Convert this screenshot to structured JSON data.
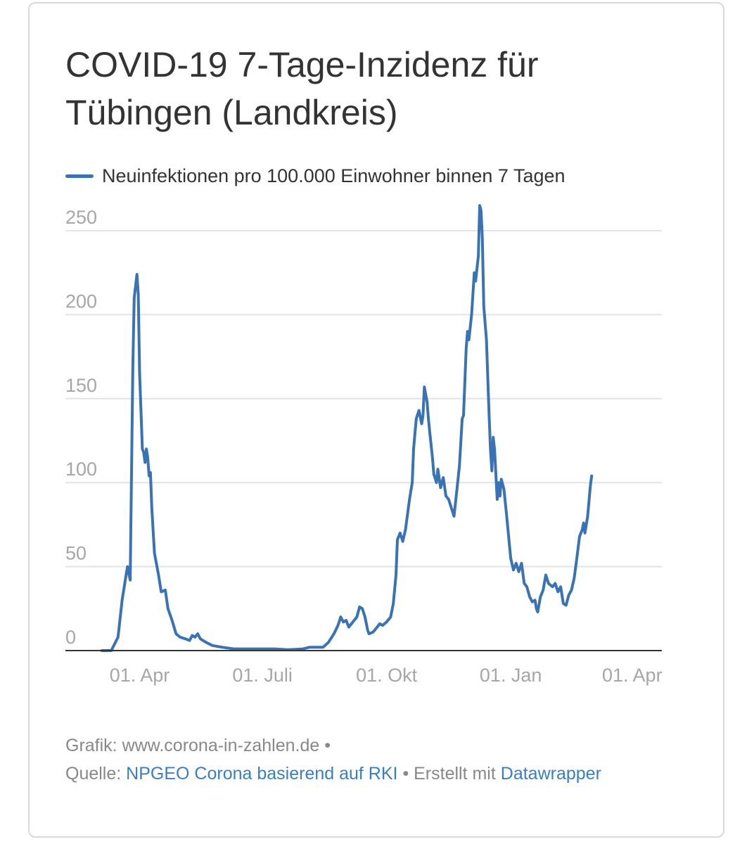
{
  "title": "COVID-19 7-Tage-Inzidenz für Tübingen (Landkreis)",
  "legend": {
    "label": "Neuinfektionen pro 100.000 Einwohner binnen 7 Tagen",
    "color": "#3a73b4"
  },
  "footer": {
    "line1": "Grafik: www.corona-in-zahlen.de •",
    "source_prefix": "Quelle:",
    "source_link": "NPGEO Corona basierend auf RKI",
    "made_with": "• Erstellt mit",
    "tool_link": "Datawrapper"
  },
  "colors": {
    "line": "#3a73b4",
    "grid": "#e3e3e3",
    "axis": "#333333",
    "tick_text": "#a6a6a6",
    "link": "#3a7ec2"
  },
  "chart_data": {
    "type": "line",
    "title": "COVID-19 7-Tage-Inzidenz für Tübingen (Landkreis)",
    "xlabel": "",
    "ylabel": "",
    "x_type": "date",
    "xlim": [
      "2020-02-06",
      "2021-04-23"
    ],
    "ylim": [
      0,
      250
    ],
    "yticks": [
      0,
      50,
      100,
      150,
      200,
      250
    ],
    "xticks": [
      {
        "date": "2020-04-01",
        "label": "01. Apr"
      },
      {
        "date": "2020-07-01",
        "label": "01. Juli"
      },
      {
        "date": "2020-10-01",
        "label": "01. Okt"
      },
      {
        "date": "2021-01-01",
        "label": "01. Jan"
      },
      {
        "date": "2021-04-01",
        "label": "01. Apr"
      }
    ],
    "grid": true,
    "legend_position": "top-left",
    "series": [
      {
        "name": "Neuinfektionen pro 100.000 Einwohner binnen 7 Tagen",
        "points": [
          [
            "2020-03-04",
            0
          ],
          [
            "2020-03-11",
            0
          ],
          [
            "2020-03-16",
            8
          ],
          [
            "2020-03-19",
            30
          ],
          [
            "2020-03-22",
            45
          ],
          [
            "2020-03-23",
            50
          ],
          [
            "2020-03-25",
            42
          ],
          [
            "2020-03-27",
            170
          ],
          [
            "2020-03-28",
            210
          ],
          [
            "2020-03-30",
            224
          ],
          [
            "2020-03-31",
            212
          ],
          [
            "2020-04-01",
            165
          ],
          [
            "2020-04-03",
            120
          ],
          [
            "2020-04-04",
            118
          ],
          [
            "2020-04-05",
            112
          ],
          [
            "2020-04-06",
            120
          ],
          [
            "2020-04-07",
            115
          ],
          [
            "2020-04-08",
            104
          ],
          [
            "2020-04-09",
            106
          ],
          [
            "2020-04-10",
            85
          ],
          [
            "2020-04-12",
            58
          ],
          [
            "2020-04-15",
            45
          ],
          [
            "2020-04-17",
            35
          ],
          [
            "2020-04-20",
            36
          ],
          [
            "2020-04-22",
            25
          ],
          [
            "2020-04-25",
            18
          ],
          [
            "2020-04-28",
            10
          ],
          [
            "2020-05-01",
            8
          ],
          [
            "2020-05-05",
            7
          ],
          [
            "2020-05-08",
            6
          ],
          [
            "2020-05-10",
            9
          ],
          [
            "2020-05-12",
            8
          ],
          [
            "2020-05-14",
            10
          ],
          [
            "2020-05-16",
            7
          ],
          [
            "2020-05-20",
            5
          ],
          [
            "2020-05-25",
            3
          ],
          [
            "2020-06-01",
            2
          ],
          [
            "2020-06-10",
            1
          ],
          [
            "2020-06-20",
            1
          ],
          [
            "2020-06-30",
            1
          ],
          [
            "2020-07-10",
            1
          ],
          [
            "2020-07-20",
            0.5
          ],
          [
            "2020-07-31",
            1
          ],
          [
            "2020-08-05",
            2
          ],
          [
            "2020-08-15",
            2
          ],
          [
            "2020-08-19",
            5
          ],
          [
            "2020-08-23",
            10
          ],
          [
            "2020-08-26",
            15
          ],
          [
            "2020-08-28",
            20
          ],
          [
            "2020-08-30",
            17
          ],
          [
            "2020-09-01",
            18
          ],
          [
            "2020-09-03",
            14
          ],
          [
            "2020-09-05",
            16
          ],
          [
            "2020-09-07",
            18
          ],
          [
            "2020-09-09",
            20
          ],
          [
            "2020-09-11",
            26
          ],
          [
            "2020-09-13",
            25
          ],
          [
            "2020-09-15",
            20
          ],
          [
            "2020-09-17",
            12
          ],
          [
            "2020-09-18",
            10
          ],
          [
            "2020-09-21",
            11
          ],
          [
            "2020-09-23",
            13
          ],
          [
            "2020-09-26",
            16
          ],
          [
            "2020-09-28",
            15
          ],
          [
            "2020-10-01",
            17
          ],
          [
            "2020-10-04",
            20
          ],
          [
            "2020-10-06",
            28
          ],
          [
            "2020-10-08",
            45
          ],
          [
            "2020-10-09",
            66
          ],
          [
            "2020-10-11",
            70
          ],
          [
            "2020-10-13",
            65
          ],
          [
            "2020-10-15",
            72
          ],
          [
            "2020-10-18",
            90
          ],
          [
            "2020-10-20",
            100
          ],
          [
            "2020-10-21",
            120
          ],
          [
            "2020-10-23",
            138
          ],
          [
            "2020-10-25",
            143
          ],
          [
            "2020-10-27",
            135
          ],
          [
            "2020-10-28",
            140
          ],
          [
            "2020-10-29",
            157
          ],
          [
            "2020-10-31",
            148
          ],
          [
            "2020-11-01",
            138
          ],
          [
            "2020-11-02",
            130
          ],
          [
            "2020-11-04",
            115
          ],
          [
            "2020-11-05",
            105
          ],
          [
            "2020-11-07",
            100
          ],
          [
            "2020-11-08",
            108
          ],
          [
            "2020-11-10",
            97
          ],
          [
            "2020-11-12",
            103
          ],
          [
            "2020-11-14",
            92
          ],
          [
            "2020-11-16",
            90
          ],
          [
            "2020-11-18",
            85
          ],
          [
            "2020-11-20",
            80
          ],
          [
            "2020-11-22",
            95
          ],
          [
            "2020-11-24",
            110
          ],
          [
            "2020-11-26",
            138
          ],
          [
            "2020-11-27",
            140
          ],
          [
            "2020-11-29",
            180
          ],
          [
            "2020-11-30",
            190
          ],
          [
            "2020-12-01",
            185
          ],
          [
            "2020-12-03",
            200
          ],
          [
            "2020-12-05",
            225
          ],
          [
            "2020-12-06",
            220
          ],
          [
            "2020-12-08",
            235
          ],
          [
            "2020-12-09",
            265
          ],
          [
            "2020-12-10",
            262
          ],
          [
            "2020-12-11",
            245
          ],
          [
            "2020-12-12",
            205
          ],
          [
            "2020-12-14",
            185
          ],
          [
            "2020-12-16",
            140
          ],
          [
            "2020-12-17",
            120
          ],
          [
            "2020-12-18",
            107
          ],
          [
            "2020-12-19",
            127
          ],
          [
            "2020-12-20",
            120
          ],
          [
            "2020-12-22",
            90
          ],
          [
            "2020-12-23",
            100
          ],
          [
            "2020-12-24",
            92
          ],
          [
            "2020-12-25",
            102
          ],
          [
            "2020-12-27",
            96
          ],
          [
            "2020-12-29",
            80
          ],
          [
            "2021-01-01",
            55
          ],
          [
            "2021-01-03",
            48
          ],
          [
            "2021-01-05",
            52
          ],
          [
            "2021-01-07",
            47
          ],
          [
            "2021-01-09",
            52
          ],
          [
            "2021-01-11",
            40
          ],
          [
            "2021-01-13",
            38
          ],
          [
            "2021-01-15",
            32
          ],
          [
            "2021-01-17",
            29
          ],
          [
            "2021-01-19",
            30
          ],
          [
            "2021-01-20",
            25
          ],
          [
            "2021-01-21",
            23
          ],
          [
            "2021-01-23",
            32
          ],
          [
            "2021-01-25",
            36
          ],
          [
            "2021-01-27",
            45
          ],
          [
            "2021-01-29",
            40
          ],
          [
            "2021-02-01",
            38
          ],
          [
            "2021-02-03",
            40
          ],
          [
            "2021-02-05",
            35
          ],
          [
            "2021-02-07",
            38
          ],
          [
            "2021-02-09",
            28
          ],
          [
            "2021-02-11",
            27
          ],
          [
            "2021-02-13",
            33
          ],
          [
            "2021-02-15",
            36
          ],
          [
            "2021-02-17",
            43
          ],
          [
            "2021-02-19",
            55
          ],
          [
            "2021-02-21",
            68
          ],
          [
            "2021-02-23",
            72
          ],
          [
            "2021-02-24",
            76
          ],
          [
            "2021-02-25",
            70
          ],
          [
            "2021-02-27",
            80
          ],
          [
            "2021-03-01",
            98
          ],
          [
            "2021-03-02",
            104
          ]
        ]
      }
    ]
  }
}
